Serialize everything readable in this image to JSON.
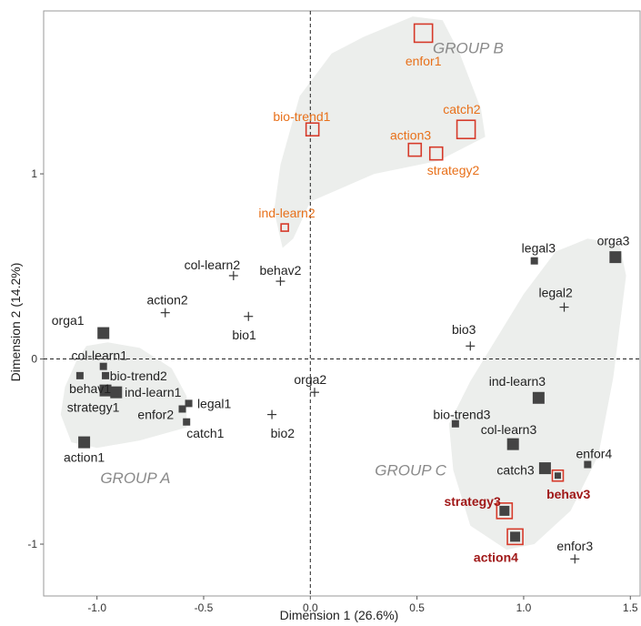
{
  "chart_data": {
    "type": "scatter",
    "title": "",
    "xlabel": "Dimension 1 (26.6%)",
    "ylabel": "Dimension 2 (14.2%)",
    "xlim": [
      -1.25,
      1.55
    ],
    "ylim": [
      -1.28,
      1.88
    ],
    "xticks": [
      -1.0,
      -0.5,
      0.0,
      0.5,
      1.0,
      1.5
    ],
    "xtick_labels": [
      "-1.0",
      "-0.5",
      "0.0",
      "0.5",
      "1.0",
      "1.5"
    ],
    "yticks": [
      -1,
      0,
      1
    ],
    "ytick_labels": [
      "-1",
      "0",
      "1"
    ],
    "reference_lines": {
      "x": 0,
      "y": 0,
      "style": "dashed"
    },
    "colors": {
      "active": "#444444",
      "supplementary": "#333333",
      "group_b": "#e8701a",
      "highlight": "#d63a2a",
      "highlight_text": "#a01818",
      "hull_fill": "#eceeec",
      "group_label": "#8a8a8a"
    },
    "groups": [
      {
        "name": "GROUP A",
        "label_at": [
          -0.82,
          -0.64
        ],
        "hull": [
          [
            -1.1,
            -0.02
          ],
          [
            -1.05,
            0.07
          ],
          [
            -0.95,
            0.09
          ],
          [
            -0.8,
            0.06
          ],
          [
            -0.65,
            -0.05
          ],
          [
            -0.58,
            -0.2
          ],
          [
            -0.58,
            -0.37
          ],
          [
            -0.8,
            -0.44
          ],
          [
            -1.0,
            -0.48
          ],
          [
            -1.12,
            -0.45
          ],
          [
            -1.17,
            -0.3
          ],
          [
            -1.15,
            -0.15
          ]
        ]
      },
      {
        "name": "GROUP B",
        "label_at": [
          0.74,
          1.68
        ],
        "hull": [
          [
            -0.13,
            0.6
          ],
          [
            -0.17,
            0.8
          ],
          [
            -0.14,
            1.05
          ],
          [
            -0.05,
            1.42
          ],
          [
            0.1,
            1.65
          ],
          [
            0.25,
            1.74
          ],
          [
            0.48,
            1.85
          ],
          [
            0.62,
            1.83
          ],
          [
            0.7,
            1.65
          ],
          [
            0.8,
            1.35
          ],
          [
            0.82,
            1.2
          ],
          [
            0.6,
            1.07
          ],
          [
            0.3,
            1.0
          ],
          [
            0.0,
            0.85
          ],
          [
            -0.08,
            0.65
          ]
        ]
      },
      {
        "name": "GROUP C",
        "label_at": [
          0.47,
          -0.6
        ],
        "hull": [
          [
            0.65,
            -0.35
          ],
          [
            0.75,
            -0.12
          ],
          [
            1.0,
            0.35
          ],
          [
            1.15,
            0.58
          ],
          [
            1.3,
            0.65
          ],
          [
            1.45,
            0.62
          ],
          [
            1.48,
            0.45
          ],
          [
            1.42,
            -0.1
          ],
          [
            1.35,
            -0.52
          ],
          [
            1.22,
            -0.82
          ],
          [
            1.05,
            -1.0
          ],
          [
            0.92,
            -1.03
          ],
          [
            0.75,
            -0.9
          ],
          [
            0.67,
            -0.6
          ]
        ]
      }
    ],
    "series": [
      {
        "name": "group-a",
        "points": [
          {
            "label": "orga1",
            "x": -0.97,
            "y": 0.14,
            "marker": "square",
            "size": "large",
            "lx": -1.06,
            "ly": 0.21,
            "anchor": "end"
          },
          {
            "label": "col-learn1",
            "x": -0.97,
            "y": -0.04,
            "marker": "square",
            "size": "small",
            "lx": -1.12,
            "ly": 0.02,
            "anchor": "start"
          },
          {
            "label": "behav1",
            "x": -1.08,
            "y": -0.09,
            "marker": "square",
            "size": "small",
            "lx": -1.13,
            "ly": -0.16,
            "anchor": "start"
          },
          {
            "label": "bio-trend2",
            "x": -0.96,
            "y": -0.09,
            "marker": "square",
            "size": "small",
            "lx": -0.94,
            "ly": -0.09,
            "anchor": "start"
          },
          {
            "label": "strategy1",
            "x": -0.96,
            "y": -0.17,
            "marker": "square",
            "size": "large",
            "lx": -1.14,
            "ly": -0.26,
            "anchor": "start"
          },
          {
            "label": "ind-learn1",
            "x": -0.91,
            "y": -0.18,
            "marker": "square",
            "size": "large",
            "lx": -0.87,
            "ly": -0.18,
            "anchor": "start"
          },
          {
            "label": "enfor2",
            "x": -0.6,
            "y": -0.27,
            "marker": "square",
            "size": "small",
            "lx": -0.64,
            "ly": -0.3,
            "anchor": "end"
          },
          {
            "label": "legal1",
            "x": -0.57,
            "y": -0.24,
            "marker": "square",
            "size": "small",
            "lx": -0.53,
            "ly": -0.24,
            "anchor": "start"
          },
          {
            "label": "catch1",
            "x": -0.58,
            "y": -0.34,
            "marker": "square",
            "size": "small",
            "lx": -0.58,
            "ly": -0.4,
            "anchor": "start"
          },
          {
            "label": "action1",
            "x": -1.06,
            "y": -0.45,
            "marker": "square",
            "size": "large",
            "lx": -1.06,
            "ly": -0.53,
            "anchor": "middle"
          }
        ]
      },
      {
        "name": "group-b",
        "points": [
          {
            "label": "enfor1",
            "x": 0.53,
            "y": 1.76,
            "marker": "open-square",
            "size": "large",
            "lx": 0.53,
            "ly": 1.61,
            "anchor": "middle"
          },
          {
            "label": "bio-trend1",
            "x": 0.01,
            "y": 1.24,
            "marker": "open-square",
            "size": "medium",
            "lx": -0.04,
            "ly": 1.31,
            "anchor": "middle"
          },
          {
            "label": "catch2",
            "x": 0.73,
            "y": 1.24,
            "marker": "open-square",
            "size": "large",
            "lx": 0.71,
            "ly": 1.35,
            "anchor": "middle"
          },
          {
            "label": "action3",
            "x": 0.49,
            "y": 1.13,
            "marker": "open-square",
            "size": "medium",
            "lx": 0.47,
            "ly": 1.21,
            "anchor": "middle"
          },
          {
            "label": "strategy2",
            "x": 0.59,
            "y": 1.11,
            "marker": "open-square",
            "size": "medium",
            "lx": 0.67,
            "ly": 1.02,
            "anchor": "middle"
          },
          {
            "label": "ind-learn2",
            "x": -0.12,
            "y": 0.71,
            "marker": "open-square",
            "size": "small",
            "lx": -0.11,
            "ly": 0.79,
            "anchor": "middle"
          }
        ]
      },
      {
        "name": "group-c",
        "points": [
          {
            "label": "legal3",
            "x": 1.05,
            "y": 0.53,
            "marker": "square",
            "size": "small",
            "lx": 1.07,
            "ly": 0.6,
            "anchor": "middle"
          },
          {
            "label": "orga3",
            "x": 1.43,
            "y": 0.55,
            "marker": "square",
            "size": "large",
            "lx": 1.42,
            "ly": 0.64,
            "anchor": "middle"
          },
          {
            "label": "ind-learn3",
            "x": 1.07,
            "y": -0.21,
            "marker": "square",
            "size": "large",
            "lx": 0.97,
            "ly": -0.12,
            "anchor": "middle"
          },
          {
            "label": "bio-trend3",
            "x": 0.68,
            "y": -0.35,
            "marker": "square",
            "size": "small",
            "lx": 0.71,
            "ly": -0.3,
            "anchor": "middle"
          },
          {
            "label": "col-learn3",
            "x": 0.95,
            "y": -0.46,
            "marker": "square",
            "size": "large",
            "lx": 0.93,
            "ly": -0.38,
            "anchor": "middle"
          },
          {
            "label": "enfor4",
            "x": 1.3,
            "y": -0.57,
            "marker": "square",
            "size": "small",
            "lx": 1.33,
            "ly": -0.51,
            "anchor": "middle"
          },
          {
            "label": "catch3",
            "x": 1.1,
            "y": -0.59,
            "marker": "square",
            "size": "large",
            "lx": 1.05,
            "ly": -0.6,
            "anchor": "end"
          },
          {
            "label": "behav3",
            "x": 1.16,
            "y": -0.63,
            "marker": "highlight",
            "size": "small",
            "lx": 1.21,
            "ly": -0.73,
            "anchor": "middle"
          },
          {
            "label": "strategy3",
            "x": 0.91,
            "y": -0.82,
            "marker": "highlight",
            "size": "large",
            "lx": 0.76,
            "ly": -0.77,
            "anchor": "middle"
          },
          {
            "label": "action4",
            "x": 0.96,
            "y": -0.96,
            "marker": "highlight",
            "size": "large",
            "lx": 0.87,
            "ly": -1.07,
            "anchor": "middle"
          }
        ]
      },
      {
        "name": "supplementary",
        "points": [
          {
            "label": "col-learn2",
            "x": -0.36,
            "y": 0.45,
            "marker": "plus",
            "lx": -0.46,
            "ly": 0.51,
            "anchor": "middle"
          },
          {
            "label": "behav2",
            "x": -0.14,
            "y": 0.42,
            "marker": "plus",
            "lx": -0.14,
            "ly": 0.48,
            "anchor": "middle"
          },
          {
            "label": "action2",
            "x": -0.68,
            "y": 0.25,
            "marker": "plus",
            "lx": -0.67,
            "ly": 0.32,
            "anchor": "middle"
          },
          {
            "label": "bio1",
            "x": -0.29,
            "y": 0.23,
            "marker": "plus",
            "lx": -0.31,
            "ly": 0.13,
            "anchor": "middle"
          },
          {
            "label": "bio3",
            "x": 0.75,
            "y": 0.07,
            "marker": "plus",
            "lx": 0.72,
            "ly": 0.16,
            "anchor": "middle"
          },
          {
            "label": "orga2",
            "x": 0.02,
            "y": -0.18,
            "marker": "plus",
            "lx": 0.0,
            "ly": -0.11,
            "anchor": "middle"
          },
          {
            "label": "bio2",
            "x": -0.18,
            "y": -0.3,
            "marker": "plus",
            "lx": -0.13,
            "ly": -0.4,
            "anchor": "middle"
          },
          {
            "label": "legal2",
            "x": 1.19,
            "y": 0.28,
            "marker": "plus",
            "lx": 1.15,
            "ly": 0.36,
            "anchor": "middle"
          },
          {
            "label": "enfor3",
            "x": 1.24,
            "y": -1.08,
            "marker": "plus",
            "lx": 1.24,
            "ly": -1.01,
            "anchor": "middle"
          }
        ]
      }
    ]
  }
}
